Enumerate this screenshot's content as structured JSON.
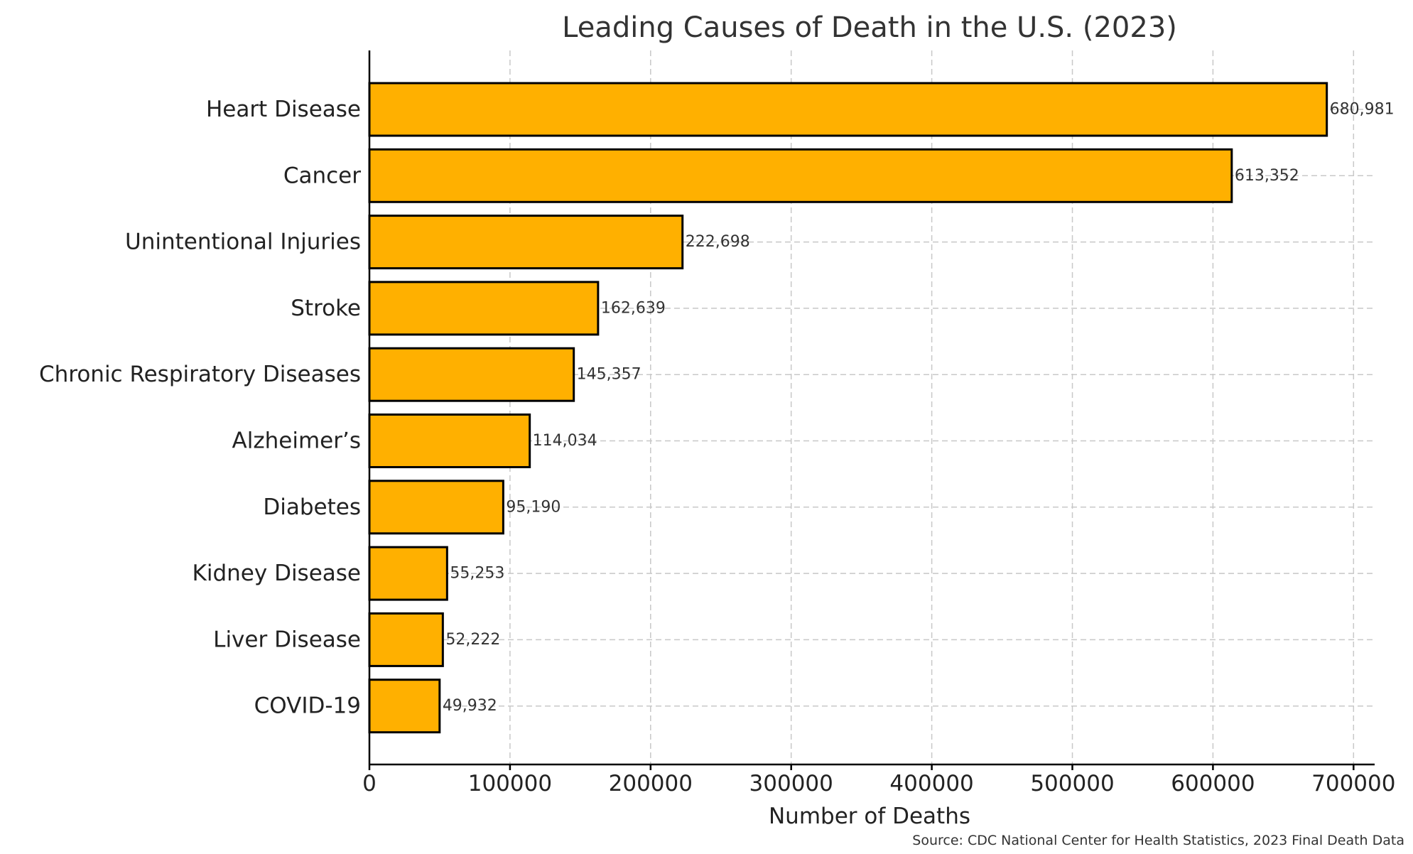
{
  "chart_data": {
    "type": "bar",
    "orientation": "horizontal",
    "title": "Leading Causes of Death in the U.S. (2023)",
    "xlabel": "Number of Deaths",
    "ylabel": "",
    "source": "Source: CDC National Center for Health Statistics, 2023 Final Death Data",
    "categories": [
      "Heart Disease",
      "Cancer",
      "Unintentional Injuries",
      "Stroke",
      "Chronic Respiratory Diseases",
      "Alzheimer’s",
      "Diabetes",
      "Kidney Disease",
      "Liver Disease",
      "COVID-19"
    ],
    "values": [
      680981,
      613352,
      222698,
      162639,
      145357,
      114034,
      95190,
      55253,
      52222,
      49932
    ],
    "value_labels": [
      "680,981",
      "613,352",
      "222,698",
      "162,639",
      "145,357",
      "114,034",
      "95,190",
      "55,253",
      "52,222",
      "49,932"
    ],
    "xlim": [
      0,
      715000
    ],
    "xticks": [
      0,
      100000,
      200000,
      300000,
      400000,
      500000,
      600000,
      700000
    ],
    "xtick_labels": [
      "0",
      "100000",
      "200000",
      "300000",
      "400000",
      "500000",
      "600000",
      "700000"
    ],
    "grid": true,
    "bar_color": "#FFB000",
    "bar_edge_color": "#000000"
  }
}
